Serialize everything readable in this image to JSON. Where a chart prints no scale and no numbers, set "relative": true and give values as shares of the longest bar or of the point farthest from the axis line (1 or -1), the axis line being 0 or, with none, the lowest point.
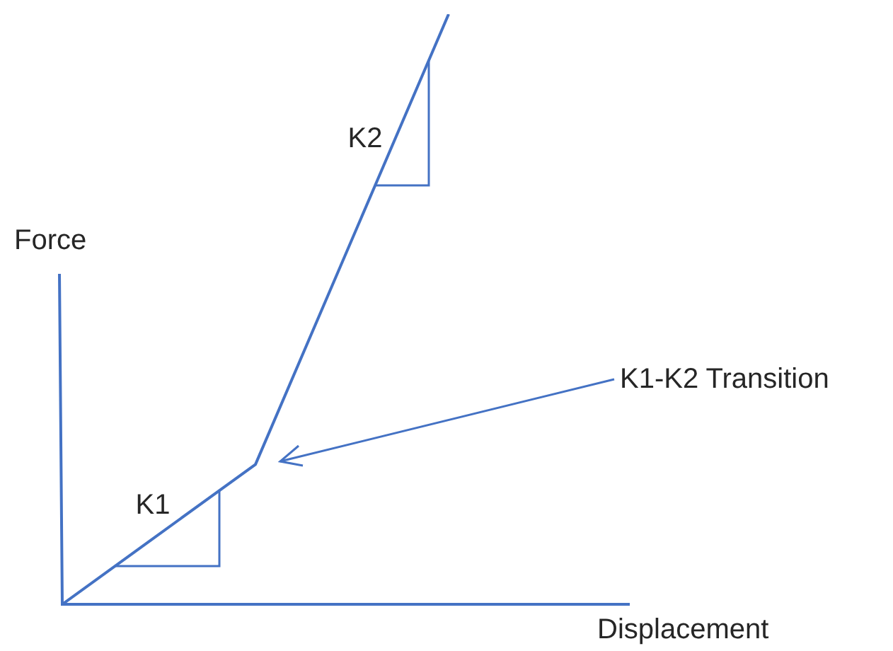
{
  "chart_data": {
    "type": "line",
    "relative": true,
    "xlabel": "Displacement",
    "ylabel": "Force",
    "legend": false,
    "marker": "none",
    "line_style": "solid",
    "categories": [
      null,
      null,
      null
    ],
    "series": [
      {
        "color": "#4472c4",
        "values": [
          0,
          0.237,
          1
        ]
      }
    ],
    "annotations": [
      "K1",
      "K2",
      "K1-K2 Transition"
    ]
  }
}
